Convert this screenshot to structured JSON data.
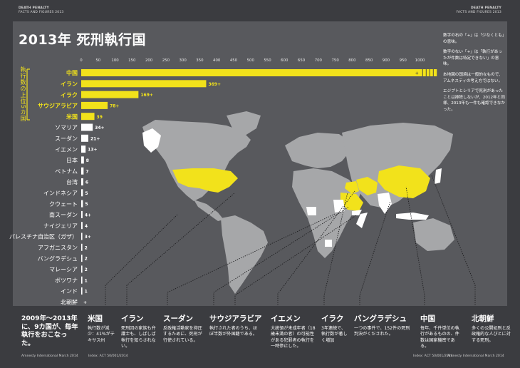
{
  "header": {
    "left_line1": "DEATH PENALTY",
    "left_line2": "FACTS AND FIGURES 2013",
    "right_line1": "DEATH PENALTY",
    "right_line2": "FACTS AND FIGURES 2013"
  },
  "title": "2013年 死刑執行国",
  "side_label": "執行数の上位5カ国",
  "notes": [
    "数字の右の「+」は「少なくとも」の意味。",
    "数字のない「+」は「執行があったが件数は特定できない」の意味。",
    "本地図の国境は一般的なもので、アムネスティの考え方ではない。",
    "エジプトとシリアで死刑があったことは排除しないが、2012年と同様、2013年も一件も確認できなかった。"
  ],
  "colors": {
    "background": "#3b3c40",
    "panel": "#58595d",
    "highlight": "#f2e21b",
    "land": "#a6a7a9",
    "executing": "#ffffff"
  },
  "chart_data": {
    "type": "bar",
    "orientation": "horizontal",
    "xlim": [
      0,
      1050
    ],
    "xticks": [
      0,
      50,
      100,
      150,
      200,
      250,
      300,
      350,
      400,
      450,
      500,
      550,
      600,
      650,
      700,
      750,
      800,
      850,
      900,
      950,
      1000
    ],
    "categories": [
      "中国",
      "イラン",
      "イラク",
      "サウジアラビア",
      "米国",
      "ソマリア",
      "スーダン",
      "イエメン",
      "日本",
      "ベトナム",
      "台湾",
      "インドネシア",
      "クウェート",
      "南スーダン",
      "ナイジェリア",
      "パレスチナ自治区（ガザ）",
      "アフガニスタン",
      "バングラデシュ",
      "マレーシア",
      "ボツワナ",
      "インド",
      "北朝鮮"
    ],
    "values": [
      1050,
      369,
      169,
      78,
      39,
      34,
      21,
      13,
      8,
      7,
      6,
      5,
      5,
      4,
      4,
      3,
      2,
      2,
      2,
      1,
      1,
      0
    ],
    "value_labels": [
      "+",
      "369+",
      "169+",
      "78+",
      "39",
      "34+",
      "21+",
      "13+",
      "8",
      "7",
      "6",
      "5",
      "5",
      "4+",
      "4",
      "3+",
      "2",
      "2",
      "2",
      "1",
      "1",
      "+"
    ],
    "top5_count": 5
  },
  "bottom": {
    "summary": "2009年～2013年に、9カ国が、毎年執行をおこなった。",
    "columns": [
      {
        "title": "米国",
        "text": "執行数が減少：41%がテキサス州"
      },
      {
        "title": "イラン",
        "text": "死刑囚の家族も弁護士も、しばしば執行を知らされない。"
      },
      {
        "title": "スーダン",
        "text": "反政権活動家を抑圧するために、死刑が行使されている。"
      },
      {
        "title": "サウジアラビア",
        "text": "執行された者のうち、ほぼ半数が外国籍である。"
      },
      {
        "title": "イエメン",
        "text": "大統領が未成年者（18歳未満の者）の可能性がある犯罪者の執行を一時停止した。"
      },
      {
        "title": "イラク",
        "text": "3年連続で、執行数が著しく増加"
      },
      {
        "title": "バングラデシュ",
        "text": "一つの事件で、152件の死刑判決がくだされた。"
      },
      {
        "title": "中国",
        "text": "毎年、千件単位の執行があるものの、件数は国家機密である。"
      },
      {
        "title": "北朝鮮",
        "text": "多くの公開処刑と反政権的な人びとに対する死刑。"
      }
    ]
  },
  "footer": {
    "left_org": "Amnesty International March 2014",
    "left_index": "Index: ACT 50/001/2014",
    "right_index": "Index: ACT 50/001/2014",
    "right_org": "Amnesty International March 2014"
  }
}
